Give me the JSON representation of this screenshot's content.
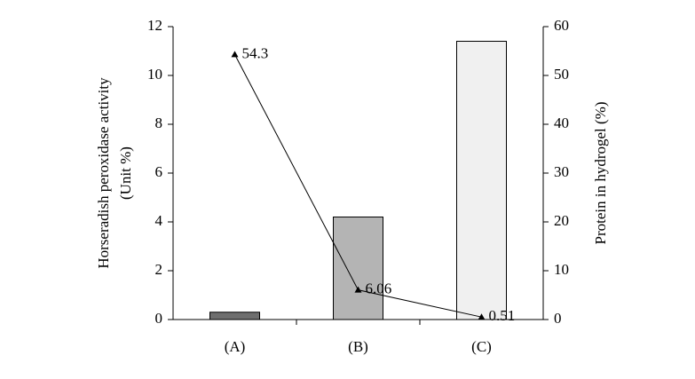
{
  "chart_data": {
    "type": "bar",
    "categories": [
      "(A)",
      "(B)",
      "(C)"
    ],
    "ylabel": [
      "Horseradish peroxidase  activity",
      "(Unit %)"
    ],
    "y2label": "Protein in hydrogel (%)",
    "ylim": [
      0,
      12
    ],
    "yticks": [
      0,
      2,
      4,
      6,
      8,
      10,
      12
    ],
    "y2lim": [
      0,
      60
    ],
    "y2ticks": [
      0,
      10,
      20,
      30,
      40,
      50,
      60
    ],
    "grid": false,
    "series": [
      {
        "type": "bar",
        "values": [
          0.3,
          4.2,
          11.4
        ],
        "colors": [
          "#6e6e6e",
          "#b4b4b4",
          "#f0f0f0"
        ]
      },
      {
        "type": "line",
        "axis": "y2",
        "values": [
          54.3,
          6.06,
          0.51
        ],
        "color": "#000000"
      }
    ]
  }
}
